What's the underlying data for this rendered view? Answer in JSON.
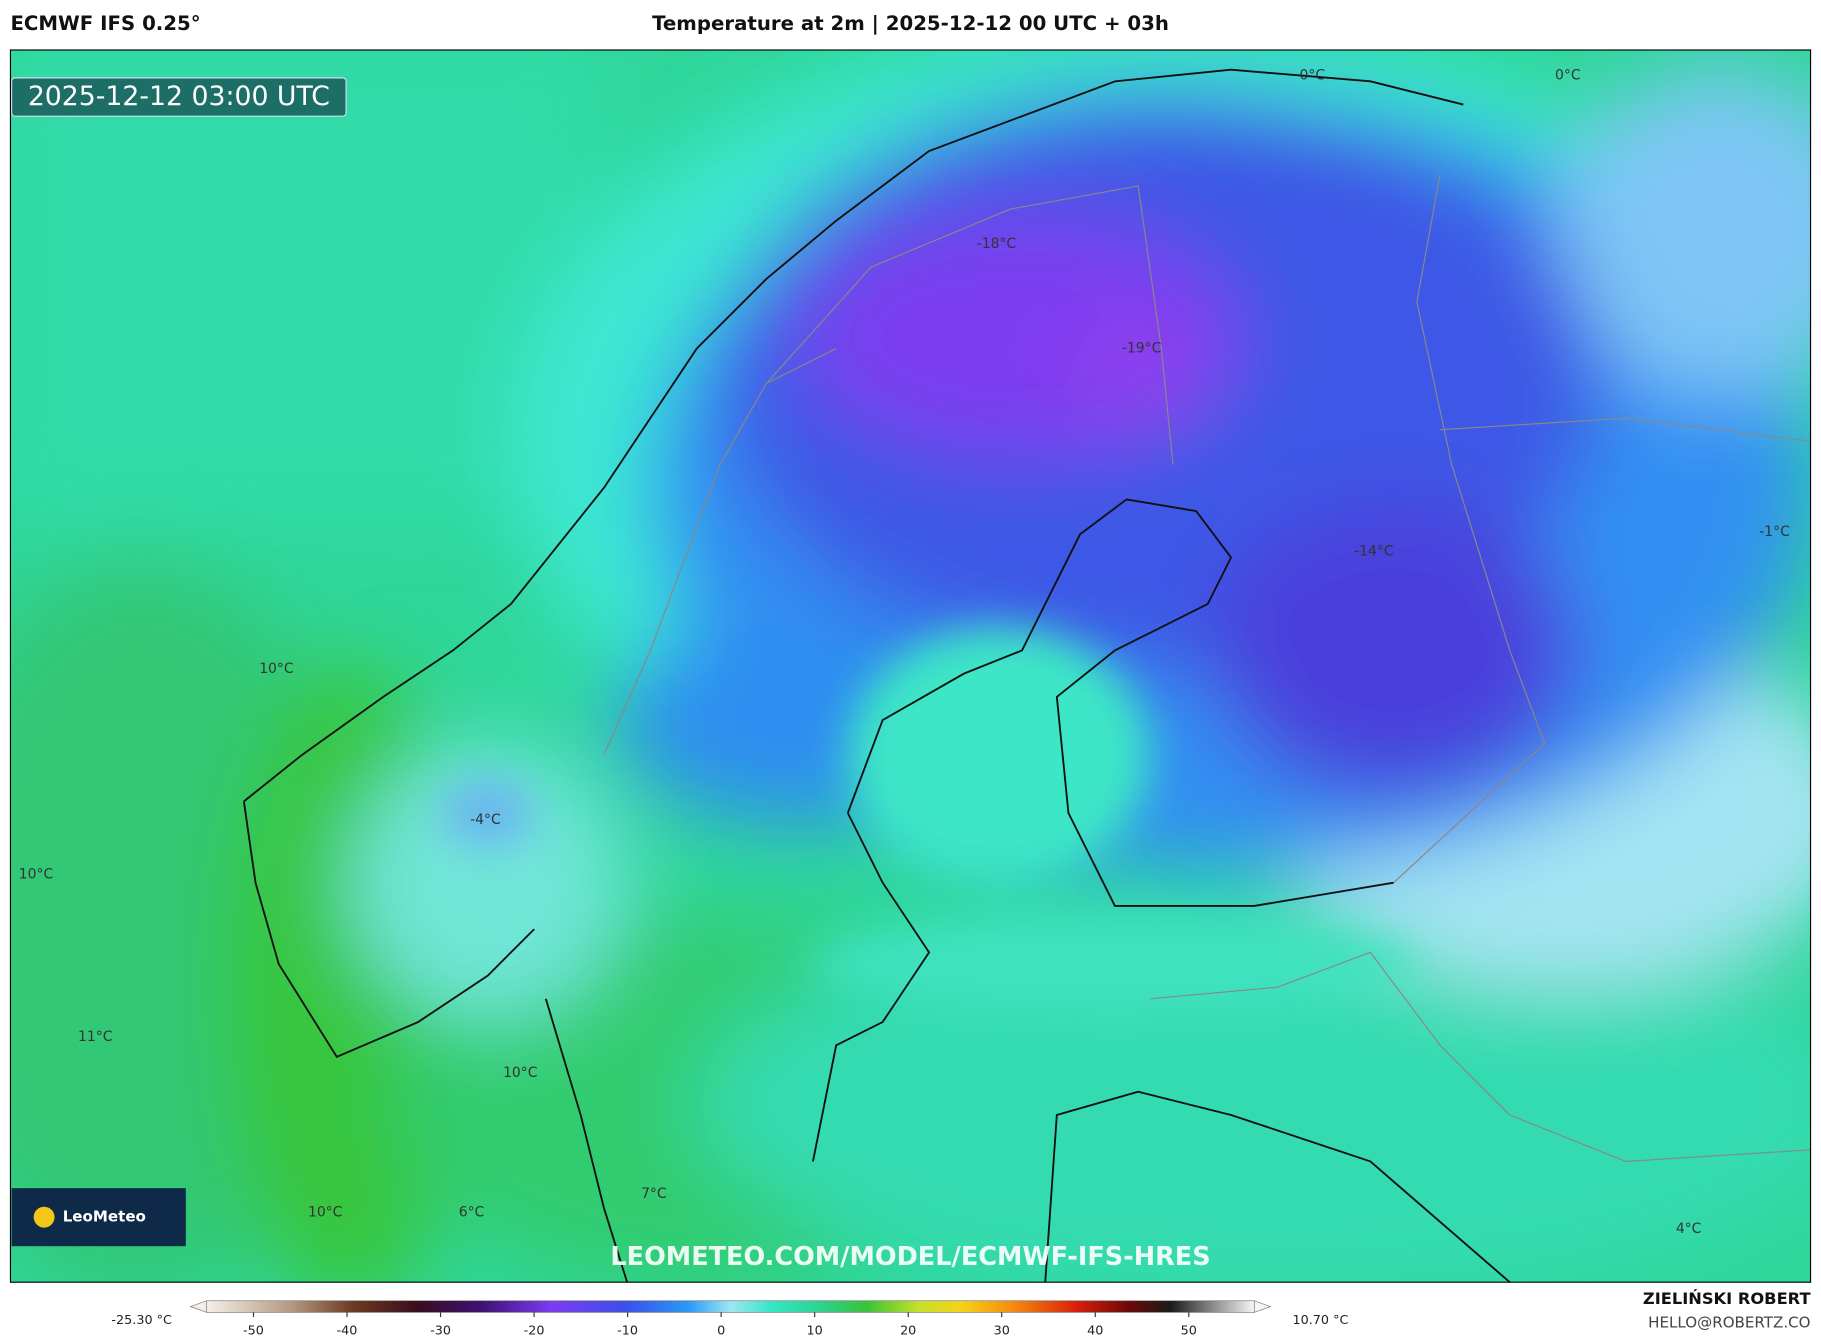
{
  "header": {
    "model": "ECMWF IFS 0.25°",
    "title": "Temperature at 2m | 2025-12-12 00 UTC + 03h"
  },
  "map": {
    "timestamp": "2025-12-12 03:00 UTC",
    "labels": [
      "0°C",
      "0°C",
      "-18°C",
      "-19°C",
      "-14°C",
      "-1°C",
      "10°C",
      "-4°C",
      "10°C",
      "11°C",
      "10°C",
      "7°C",
      "6°C",
      "10°C",
      "4°C"
    ],
    "watermark": "LEOMETEO.COM/MODEL/ECMWF-IFS-HRES",
    "logo": "LeoMeteo"
  },
  "colorbar": {
    "min_label": "-25.30 °C",
    "max_label": "10.70 °C",
    "lim": [
      -55,
      57
    ],
    "ticks": [
      -50,
      -40,
      -30,
      -20,
      -10,
      0,
      10,
      20,
      30,
      40,
      50
    ]
  },
  "author": {
    "name": "ZIELIŃSKI ROBERT",
    "email": "HELLO@ROBERTZ.CO"
  }
}
